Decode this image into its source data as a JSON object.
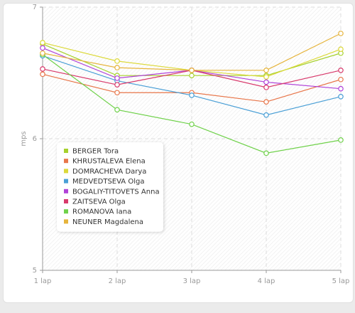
{
  "chart_data": {
    "type": "line",
    "title": "",
    "xlabel": "",
    "ylabel": "mps",
    "categories": [
      "1 lap",
      "2 lap",
      "3 lap",
      "4 lap",
      "5 lap"
    ],
    "ylim": [
      5,
      7
    ],
    "yticks": [
      "5",
      "6",
      "7"
    ],
    "grid": true,
    "legend_position": "bottom-left inside plot",
    "series": [
      {
        "name": "BERGER Tora",
        "color": "#a6d12d",
        "values": [
          6.72,
          6.48,
          6.48,
          6.48,
          6.65
        ]
      },
      {
        "name": "KHRUSTALEVA Elena",
        "color": "#e8764a",
        "values": [
          6.49,
          6.35,
          6.35,
          6.28,
          6.45
        ]
      },
      {
        "name": "DOMRACHEVA Darya",
        "color": "#dcd93a",
        "values": [
          6.73,
          6.59,
          6.52,
          6.47,
          6.68
        ]
      },
      {
        "name": "MEDVEDTSEVA Olga",
        "color": "#4a9fd6",
        "values": [
          6.63,
          6.44,
          6.33,
          6.18,
          6.32
        ]
      },
      {
        "name": "BOGALIY-TITOVETS Anna",
        "color": "#b042d8",
        "values": [
          6.69,
          6.46,
          6.52,
          6.43,
          6.38
        ]
      },
      {
        "name": "ZAITSEVA Olga",
        "color": "#d83a6c",
        "values": [
          6.53,
          6.41,
          6.52,
          6.39,
          6.52
        ]
      },
      {
        "name": "ROMANOVA Iana",
        "color": "#6fd14a",
        "values": [
          6.64,
          6.22,
          6.11,
          5.89,
          5.99
        ]
      },
      {
        "name": "NEUNER Magdalena",
        "color": "#e6b43c",
        "values": [
          6.65,
          6.54,
          6.52,
          6.52,
          6.8
        ]
      }
    ]
  }
}
